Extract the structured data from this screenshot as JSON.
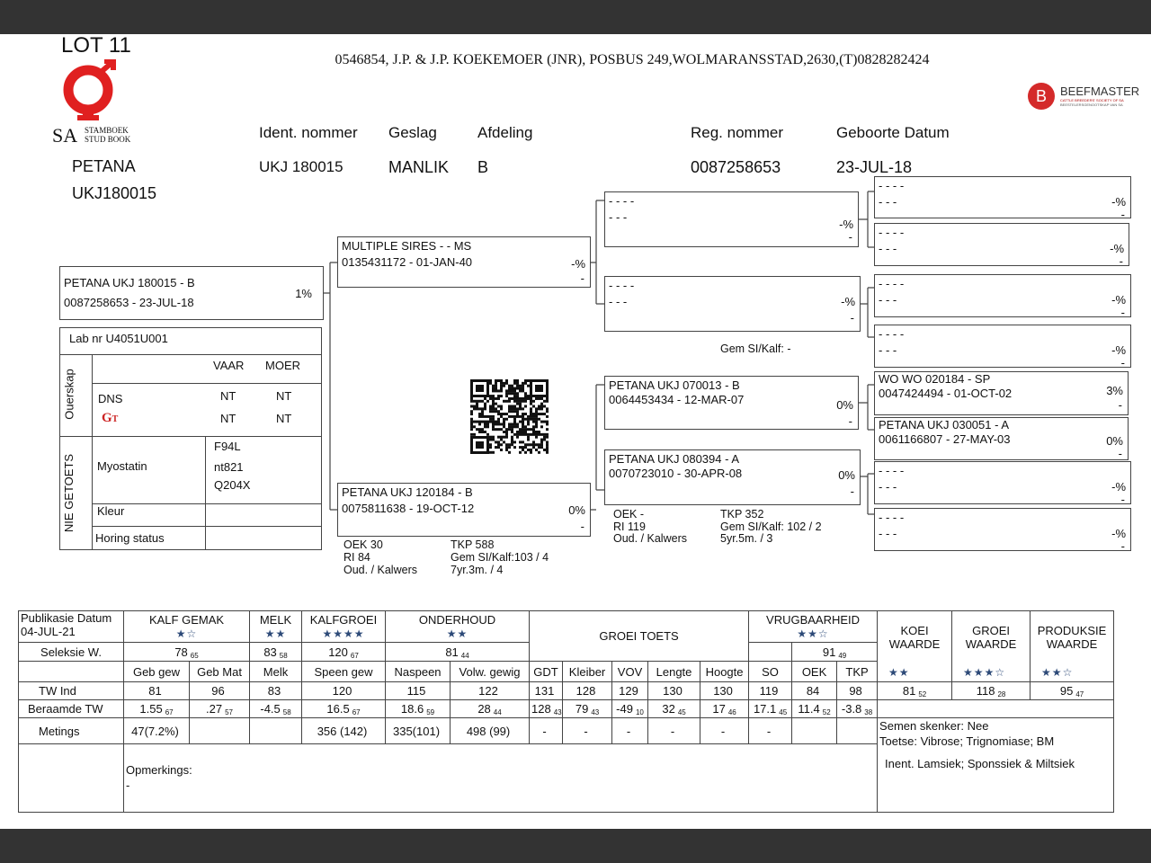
{
  "header": {
    "lot": "LOT 11",
    "owner": "0546854, J.P. & J.P. KOEKEMOER (JNR), POSBUS 249,WOLMARANSSTAD,2630,(T)0828282424",
    "logo_left": {
      "sa": "SA",
      "line1": "STAMBOEK",
      "line2": "STUD BOOK",
      "color": "#e02020"
    },
    "logo_right": {
      "letter": "B",
      "name": "BEEFMASTER",
      "sub1": "CATTLE BREEDERS' SOCIETY OF SA",
      "sub2": "BEESTELERSGENOOTSKAP VAN SA",
      "color": "#d42a2a"
    }
  },
  "animal": {
    "prefix": "PETANA",
    "code": "UKJ180015",
    "fields": [
      {
        "label": "Ident. nommer",
        "value": "UKJ 180015"
      },
      {
        "label": "Geslag",
        "value": "MANLIK"
      },
      {
        "label": "Afdeling",
        "value": "B"
      },
      {
        "label": "Reg. nommer",
        "value": "0087258653"
      },
      {
        "label": "Geboorte Datum",
        "value": "23-JUL-18"
      }
    ]
  },
  "pedigree": {
    "self": {
      "l1": "PETANA UKJ 180015 - B",
      "l2": "0087258653 -  23-JUL-18",
      "pct": "1%"
    },
    "sire": {
      "l1": "MULTIPLE SIRES - - MS",
      "l2": "0135431172 - 01-JAN-40",
      "pct": "-%",
      "x": "-"
    },
    "dam": {
      "l1": "PETANA UKJ 120184 - B",
      "l2": "0075811638 - 19-OCT-12",
      "pct": "0%",
      "x": "-"
    },
    "ss": {
      "l1": "- - - -",
      "l2": "- - -",
      "pct": "-%",
      "x": "-"
    },
    "sd": {
      "l1": "- - - -",
      "l2": "- - -",
      "pct": "-%",
      "x": "-"
    },
    "ds": {
      "l1": "PETANA UKJ 070013 - B",
      "l2": "0064453434 - 12-MAR-07",
      "pct": "0%",
      "x": "-"
    },
    "dd": {
      "l1": "PETANA UKJ 080394 - A",
      "l2": "0070723010 - 30-APR-08",
      "pct": "0%",
      "x": "-"
    },
    "gg": [
      {
        "l1": "- - - -",
        "l2": "- - -",
        "pct": "-%",
        "x": "-"
      },
      {
        "l1": "- - - -",
        "l2": "- - -",
        "pct": "-%",
        "x": "-"
      },
      {
        "l1": "- - - -",
        "l2": "- - -",
        "pct": "-%",
        "x": "-"
      },
      {
        "l1": "- - - -",
        "l2": "- - -",
        "pct": "-%",
        "x": "-"
      },
      {
        "l1": "WO WO  020184 - SP",
        "l2": "0047424494 - 01-OCT-02",
        "pct": "3%",
        "x": "-"
      },
      {
        "l1": "PETANA UKJ 030051 - A",
        "l2": "0061166807 - 27-MAY-03",
        "pct": "0%",
        "x": "-"
      },
      {
        "l1": "- - - -",
        "l2": "- - -",
        "pct": "-%",
        "x": "-"
      },
      {
        "l1": "- - - -",
        "l2": "- - -",
        "pct": "-%",
        "x": "-"
      }
    ],
    "sire_gem": "Gem SI/Kalf:  -",
    "dam_stats": {
      "oek": "OEK       30",
      "ri": "RI   84",
      "oud": "Oud. / Kalwers",
      "tkp": "TKP        588",
      "gem": "Gem SI/Kalf:103 / 4",
      "age": "7yr.3m. / 4"
    },
    "dd_stats": {
      "oek": "OEK         -",
      "ri": "RI          119",
      "oud": "Oud. / Kalwers",
      "tkp": "TKP        352",
      "gem": "Gem SI/Kalf:    102 / 2",
      "age": "5yr.5m. / 3"
    }
  },
  "lab": {
    "labnr": "Lab nr  U4051U001",
    "ouerskap": "Ouerskap",
    "nie": "NIE GETOETS",
    "vaar": "VAAR",
    "moer": "MOER",
    "dns": "DNS",
    "dns_v": "NT",
    "dns_m": "NT",
    "gt_v": "NT",
    "gt_m": "NT",
    "myostatin": "Myostatin",
    "myo": [
      "F94L",
      "nt821",
      "Q204X"
    ],
    "kleur": "Kleur",
    "horing": "Horing status"
  },
  "evaluations": {
    "pub_label": "Publikasie Datum",
    "pub_date": "04-JUL-21",
    "groups": [
      {
        "label": "KALF GEMAK",
        "stars": "★☆"
      },
      {
        "label": "MELK",
        "stars": "★★"
      },
      {
        "label": "KALFGROEI",
        "stars": "★★★★"
      },
      {
        "label": "ONDERHOUD",
        "stars": "★★"
      }
    ],
    "groei_toets": "GROEI TOETS",
    "vrug": {
      "label": "VRUGBAARHEID",
      "stars": "★★☆",
      "v": "91",
      "a": "49"
    },
    "seleksie_label": "Seleksie W.",
    "seleksie": [
      {
        "v": "78",
        "a": "65"
      },
      {
        "v": "83",
        "a": "58"
      },
      {
        "v": "120",
        "a": "67"
      },
      {
        "v": "81",
        "a": "44"
      }
    ],
    "waardes": [
      {
        "label1": "KOEI",
        "label2": "WAARDE",
        "stars": "★★",
        "v": "81",
        "a": "52"
      },
      {
        "label1": "GROEI",
        "label2": "WAARDE",
        "stars": "★★★☆",
        "v": "118",
        "a": "28"
      },
      {
        "label1": "PRODUKSIE",
        "label2": "WAARDE",
        "stars": "★★☆",
        "v": "95",
        "a": "47"
      }
    ],
    "columns": [
      "Geb gew",
      "Geb Mat",
      "Melk",
      "Speen gew",
      "Naspeen",
      "Volw. gewig",
      "GDT",
      "Kleiber",
      "VOV",
      "Lengte",
      "Hoogte",
      "SO",
      "OEK",
      "TKP"
    ],
    "rows": [
      {
        "label": "TW Ind",
        "cells": [
          {
            "v": "81"
          },
          {
            "v": "96"
          },
          {
            "v": "83"
          },
          {
            "v": "120"
          },
          {
            "v": "115"
          },
          {
            "v": "122"
          },
          {
            "v": "131"
          },
          {
            "v": "128"
          },
          {
            "v": "129"
          },
          {
            "v": "130"
          },
          {
            "v": "130"
          },
          {
            "v": "119"
          },
          {
            "v": "84"
          },
          {
            "v": "98"
          }
        ]
      },
      {
        "label": "Beraamde TW",
        "cells": [
          {
            "v": "1.55",
            "a": "67"
          },
          {
            "v": ".27",
            "a": "57"
          },
          {
            "v": "-4.5",
            "a": "58"
          },
          {
            "v": "16.5",
            "a": "67"
          },
          {
            "v": "18.6",
            "a": "59"
          },
          {
            "v": "28",
            "a": "44"
          },
          {
            "v": "128",
            "a": "43"
          },
          {
            "v": "79",
            "a": "43"
          },
          {
            "v": "-49",
            "a": "10"
          },
          {
            "v": "32",
            "a": "45"
          },
          {
            "v": "17",
            "a": "46"
          },
          {
            "v": "17.1",
            "a": "45"
          },
          {
            "v": "11.4",
            "a": "52"
          },
          {
            "v": "-3.8",
            "a": "38"
          }
        ]
      },
      {
        "label": "Metings",
        "cells": [
          {
            "v": "47(7.2%)"
          },
          {
            "v": ""
          },
          {
            "v": ""
          },
          {
            "v": "356 (142)"
          },
          {
            "v": "335(101)"
          },
          {
            "v": "498 (99)"
          },
          {
            "v": "-"
          },
          {
            "v": "-"
          },
          {
            "v": "-"
          },
          {
            "v": "-"
          },
          {
            "v": "-"
          },
          {
            "v": "-"
          },
          {
            "v": ""
          },
          {
            "v": ""
          }
        ]
      }
    ],
    "notes": [
      "Semen skenker: Nee",
      "Toetse: Vibrose; Trignomiase; BM",
      "Inent. Lamsiek; Sponssiek & Miltsiek"
    ],
    "opmerkings_label": "Opmerkings:",
    "opmerkings": "-"
  }
}
